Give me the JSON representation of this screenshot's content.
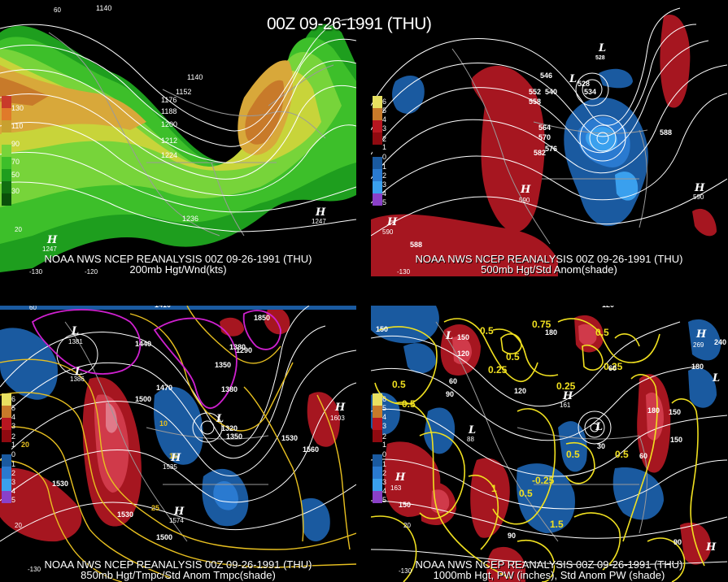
{
  "title": "00Z 09-26-1991 (THU)",
  "panels": {
    "p1": {
      "caption_line1": "NOAA NWS NCEP REANALYSIS 00Z 09-26-1991 (THU)",
      "caption_line2": "200mb Hgt/Wnd(kts)",
      "legend": [
        "130",
        "110",
        "90",
        "70",
        "50",
        "30"
      ],
      "contour_labels": [
        "1140",
        "1140",
        "1152",
        "1176",
        "1188",
        "1200",
        "1212",
        "1224",
        "1236"
      ],
      "hl_labels": [
        "H",
        "H"
      ],
      "hl_values": [
        "1247",
        "1247"
      ],
      "lat_labels": [
        "60",
        "20"
      ],
      "lon_labels": [
        "-130",
        "-120"
      ]
    },
    "p2": {
      "caption_line1": "NOAA NWS NCEP REANALYSIS 00Z 09-26-1991 (THU)",
      "caption_line2": "500mb Hgt/Std Anom(shade)",
      "legend": [
        "6",
        "5",
        "4",
        "3",
        "2",
        "1",
        "0",
        "1",
        "2",
        "3",
        "4",
        "5"
      ],
      "contour_labels": [
        "546",
        "552",
        "558",
        "540",
        "528",
        "534",
        "564",
        "570",
        "576",
        "582",
        "588",
        "588",
        "528"
      ],
      "hl_labels": [
        "L",
        "L",
        "H",
        "H",
        "H"
      ],
      "hl_values": [
        "590",
        "590",
        "590"
      ],
      "lon_labels": [
        "-130"
      ]
    },
    "p3": {
      "caption_line1": "NOAA NWS NCEP REANALYSIS 00Z 09-26-1991 (THU)",
      "caption_line2": "850mb Hgt/Tmpc/Std Anom Tmpc(shade)",
      "legend": [
        "6",
        "5",
        "4",
        "3",
        "2",
        "1",
        "0",
        "1",
        "2",
        "3",
        "4",
        "5"
      ],
      "contour_labels": [
        "1410",
        "1440",
        "1470",
        "1380",
        "1350",
        "1350",
        "1380",
        "1500",
        "1530",
        "1560",
        "1530",
        "1530",
        "1500",
        "1320",
        "1850",
        "1290",
        "15",
        "10",
        "25",
        "20"
      ],
      "hl_labels": [
        "L",
        "L",
        "L",
        "H",
        "H",
        "H"
      ],
      "hl_values": [
        "1381",
        "1386",
        "1603",
        "1535",
        "1574"
      ],
      "lat_labels": [
        "60",
        "20"
      ],
      "lon_labels": [
        "-130"
      ]
    },
    "p4": {
      "caption_line1": "NOAA NWS NCEP REANALYSIS 00Z 09-26-1991 (THU)",
      "caption_line2": "1000mb Hgt, PW (inches), Std Anom PW (shade)",
      "legend": [
        "6",
        "5",
        "4",
        "3",
        "2",
        "1",
        "0",
        "1",
        "2",
        "3",
        "4",
        "5"
      ],
      "contour_labels": [
        "120",
        "150",
        "180",
        "150",
        "0.5",
        "0.75",
        "0.5",
        "0.25",
        "0.5",
        "0.25",
        "0.5",
        "0.5",
        "1",
        "0.25",
        "0.5",
        "1.5",
        "0.5",
        "120",
        "90",
        "60",
        "30",
        "150",
        "60",
        "120",
        "180",
        "150",
        "150",
        "90",
        "60",
        "240",
        "180",
        "90",
        "-0.25",
        "0.5"
      ],
      "hl_labels": [
        "L",
        "L",
        "L",
        "L",
        "H",
        "H",
        "H",
        "H"
      ],
      "hl_values": [
        "88",
        "269",
        "161",
        "163"
      ],
      "lat_labels": [
        "20"
      ],
      "lon_labels": [
        "-130"
      ]
    }
  },
  "colors": {
    "wind_greens": [
      "#1e9e1e",
      "#3dbf2a",
      "#77d43a",
      "#c8d43a",
      "#d8a83a",
      "#c87a2a"
    ],
    "anom_warm": [
      "#8f0a10",
      "#b81620",
      "#d03a4a",
      "#e07a8a"
    ],
    "anom_cold": [
      "#1a5aa0",
      "#2a7ad0",
      "#3aa0ee",
      "#7acdf5"
    ],
    "height_contour": "#ffffff",
    "temp_contour": "#e8c020",
    "negative_temp_contour": "#d020d0",
    "pw_contour": "#f0e020"
  }
}
